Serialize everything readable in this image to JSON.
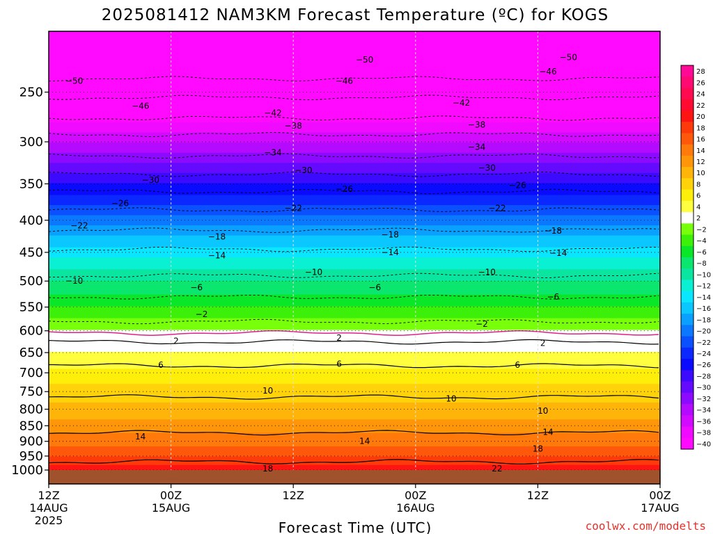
{
  "title": "2025081412 NAM3KM Forecast Temperature (ºC) for KOGS",
  "xlabel": "Forecast Time (UTC)",
  "credit": "coolwx.com/modelts",
  "colors": {
    "ground": "#a0522d",
    "freezing_line": "#e0208a"
  },
  "chart_data": {
    "type": "heatmap",
    "title": "2025081412 NAM3KM Forecast Temperature (ºC) for KOGS",
    "xlabel": "Forecast Time (UTC)",
    "ylabel": "",
    "y_axis": {
      "scale": "log",
      "direction": "decreasing-upward",
      "range_hPa": [
        1000,
        200
      ],
      "ticks": [
        250,
        300,
        350,
        400,
        450,
        500,
        550,
        600,
        650,
        700,
        750,
        800,
        850,
        900,
        950,
        1000
      ]
    },
    "x_axis": {
      "range": [
        "2025-08-14 12Z",
        "2025-08-17 00Z"
      ],
      "ticks": [
        {
          "line1": "12Z",
          "line2": "14AUG",
          "line3": "2025"
        },
        {
          "line1": "00Z",
          "line2": "15AUG",
          "line3": ""
        },
        {
          "line1": "12Z",
          "line2": "",
          "line3": ""
        },
        {
          "line1": "00Z",
          "line2": "16AUG",
          "line3": ""
        },
        {
          "line1": "12Z",
          "line2": "",
          "line3": ""
        },
        {
          "line1": "00Z",
          "line2": "17AUG",
          "line3": ""
        }
      ]
    },
    "grid": true,
    "colorbar": {
      "labels": [
        "28",
        "26",
        "24",
        "22",
        "20",
        "18",
        "16",
        "14",
        "12",
        "10",
        "8",
        "6",
        "4",
        "2",
        "−2",
        "−4",
        "−6",
        "−8",
        "−10",
        "−12",
        "−14",
        "−16",
        "−18",
        "−20",
        "−22",
        "−24",
        "−26",
        "−28",
        "−30",
        "−32",
        "−34",
        "−36",
        "−38",
        "−40"
      ],
      "colors": [
        "#ff0a96",
        "#ff0a72",
        "#ff0a50",
        "#ff0a30",
        "#ff1414",
        "#ff3a0a",
        "#ff580a",
        "#ff7a0a",
        "#ff960a",
        "#ffb40a",
        "#ffd20a",
        "#ffee0a",
        "#ffff40",
        "#ffffff",
        "#78ff0a",
        "#3cf00a",
        "#0ae628",
        "#0ae66e",
        "#0ae6a0",
        "#0af0d2",
        "#0ae6ff",
        "#0ac8ff",
        "#0aa0ff",
        "#0a78ff",
        "#0a50ff",
        "#0a28ff",
        "#0a0aff",
        "#3c0aff",
        "#640aff",
        "#8c0aff",
        "#b40aff",
        "#d20aff",
        "#f00aff",
        "#ff0aff"
      ]
    },
    "temperature_profile": [
      {
        "pressure_hPa": 1000,
        "temp_c": 21
      },
      {
        "pressure_hPa": 950,
        "temp_c": 18
      },
      {
        "pressure_hPa": 900,
        "temp_c": 15
      },
      {
        "pressure_hPa": 850,
        "temp_c": 13
      },
      {
        "pressure_hPa": 800,
        "temp_c": 10.5
      },
      {
        "pressure_hPa": 750,
        "temp_c": 9
      },
      {
        "pressure_hPa": 700,
        "temp_c": 6.5
      },
      {
        "pressure_hPa": 650,
        "temp_c": 4
      },
      {
        "pressure_hPa": 600,
        "temp_c": 0
      },
      {
        "pressure_hPa": 550,
        "temp_c": -4
      },
      {
        "pressure_hPa": 500,
        "temp_c": -8
      },
      {
        "pressure_hPa": 450,
        "temp_c": -13
      },
      {
        "pressure_hPa": 400,
        "temp_c": -19
      },
      {
        "pressure_hPa": 350,
        "temp_c": -26
      },
      {
        "pressure_hPa": 300,
        "temp_c": -34
      },
      {
        "pressure_hPa": 250,
        "temp_c": -44
      },
      {
        "pressure_hPa": 200,
        "temp_c": -54
      }
    ],
    "contours": [
      {
        "value": 18,
        "style": "solid",
        "pressure_hPa": 970
      },
      {
        "value": 14,
        "style": "solid",
        "pressure_hPa": 872
      },
      {
        "value": 10,
        "style": "solid",
        "pressure_hPa": 765
      },
      {
        "value": 6,
        "style": "solid",
        "pressure_hPa": 682
      },
      {
        "value": 2,
        "style": "solid",
        "pressure_hPa": 625
      },
      {
        "value": 0,
        "style": "freezing",
        "pressure_hPa": 605
      },
      {
        "value": -2,
        "style": "dashed",
        "pressure_hPa": 580
      },
      {
        "value": -6,
        "style": "dashed",
        "pressure_hPa": 530
      },
      {
        "value": -10,
        "style": "dashed",
        "pressure_hPa": 490
      },
      {
        "value": -14,
        "style": "dashed",
        "pressure_hPa": 445
      },
      {
        "value": -18,
        "style": "dashed",
        "pressure_hPa": 415
      },
      {
        "value": -22,
        "style": "dashed",
        "pressure_hPa": 385
      },
      {
        "value": -26,
        "style": "dashed",
        "pressure_hPa": 360
      },
      {
        "value": -30,
        "style": "dashed",
        "pressure_hPa": 338
      },
      {
        "value": -34,
        "style": "dashed",
        "pressure_hPa": 316
      },
      {
        "value": -38,
        "style": "dashed",
        "pressure_hPa": 292
      },
      {
        "value": -42,
        "style": "dashed",
        "pressure_hPa": 275
      },
      {
        "value": -46,
        "style": "dashed",
        "pressure_hPa": 255
      },
      {
        "value": -50,
        "style": "dashed",
        "pressure_hPa": 238
      }
    ],
    "contour_labels": [
      {
        "text": "−50",
        "time_h": 31,
        "pressure_hPa": 222
      },
      {
        "text": "−50",
        "time_h": 51,
        "pressure_hPa": 220
      },
      {
        "text": "−50",
        "time_h": 2.5,
        "pressure_hPa": 240
      },
      {
        "text": "−46",
        "time_h": 29,
        "pressure_hPa": 240
      },
      {
        "text": "−46",
        "time_h": 49,
        "pressure_hPa": 232
      },
      {
        "text": "−46",
        "time_h": 9,
        "pressure_hPa": 263
      },
      {
        "text": "−42",
        "time_h": 22,
        "pressure_hPa": 270
      },
      {
        "text": "−42",
        "time_h": 40.5,
        "pressure_hPa": 260
      },
      {
        "text": "−38",
        "time_h": 24,
        "pressure_hPa": 283
      },
      {
        "text": "−38",
        "time_h": 42,
        "pressure_hPa": 282
      },
      {
        "text": "−34",
        "time_h": 22,
        "pressure_hPa": 312
      },
      {
        "text": "−34",
        "time_h": 42,
        "pressure_hPa": 306
      },
      {
        "text": "−30",
        "time_h": 10,
        "pressure_hPa": 345
      },
      {
        "text": "−30",
        "time_h": 25,
        "pressure_hPa": 333
      },
      {
        "text": "−30",
        "time_h": 43,
        "pressure_hPa": 330
      },
      {
        "text": "−26",
        "time_h": 7,
        "pressure_hPa": 376
      },
      {
        "text": "−26",
        "time_h": 29,
        "pressure_hPa": 357
      },
      {
        "text": "−26",
        "time_h": 46,
        "pressure_hPa": 352
      },
      {
        "text": "−22",
        "time_h": 3,
        "pressure_hPa": 408
      },
      {
        "text": "−22",
        "time_h": 24,
        "pressure_hPa": 383
      },
      {
        "text": "−22",
        "time_h": 44,
        "pressure_hPa": 383
      },
      {
        "text": "−18",
        "time_h": 16.5,
        "pressure_hPa": 425
      },
      {
        "text": "−18",
        "time_h": 33.5,
        "pressure_hPa": 422
      },
      {
        "text": "−18",
        "time_h": 49.5,
        "pressure_hPa": 416
      },
      {
        "text": "−14",
        "time_h": 16.5,
        "pressure_hPa": 455
      },
      {
        "text": "−14",
        "time_h": 33.5,
        "pressure_hPa": 450
      },
      {
        "text": "−14",
        "time_h": 50,
        "pressure_hPa": 451
      },
      {
        "text": "−10",
        "time_h": 2.5,
        "pressure_hPa": 500
      },
      {
        "text": "−10",
        "time_h": 26,
        "pressure_hPa": 484
      },
      {
        "text": "−10",
        "time_h": 43,
        "pressure_hPa": 484
      },
      {
        "text": "−6",
        "time_h": 14.5,
        "pressure_hPa": 512
      },
      {
        "text": "−6",
        "time_h": 32,
        "pressure_hPa": 512
      },
      {
        "text": "−6",
        "time_h": 49.5,
        "pressure_hPa": 530
      },
      {
        "text": "−2",
        "time_h": 15,
        "pressure_hPa": 565
      },
      {
        "text": "−2",
        "time_h": 42.5,
        "pressure_hPa": 585
      },
      {
        "text": "2",
        "time_h": 12.5,
        "pressure_hPa": 623
      },
      {
        "text": "2",
        "time_h": 28.5,
        "pressure_hPa": 616
      },
      {
        "text": "2",
        "time_h": 48.5,
        "pressure_hPa": 628
      },
      {
        "text": "6",
        "time_h": 11,
        "pressure_hPa": 680
      },
      {
        "text": "6",
        "time_h": 28.5,
        "pressure_hPa": 678
      },
      {
        "text": "6",
        "time_h": 46,
        "pressure_hPa": 680
      },
      {
        "text": "10",
        "time_h": 21.5,
        "pressure_hPa": 748
      },
      {
        "text": "10",
        "time_h": 39.5,
        "pressure_hPa": 770
      },
      {
        "text": "10",
        "time_h": 48.5,
        "pressure_hPa": 805
      },
      {
        "text": "14",
        "time_h": 9,
        "pressure_hPa": 885
      },
      {
        "text": "14",
        "time_h": 31,
        "pressure_hPa": 900
      },
      {
        "text": "14",
        "time_h": 49,
        "pressure_hPa": 870
      },
      {
        "text": "18",
        "time_h": 48,
        "pressure_hPa": 925
      },
      {
        "text": "18",
        "time_h": 21.5,
        "pressure_hPa": 995
      },
      {
        "text": "22",
        "time_h": 44,
        "pressure_hPa": 995
      }
    ]
  }
}
